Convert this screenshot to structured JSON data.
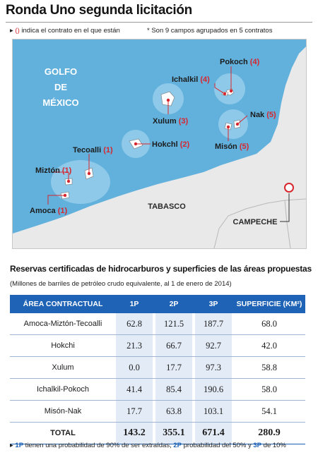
{
  "title": "Ronda Uno segunda licitación",
  "notes": {
    "n1_pre": "(",
    "n1_red": ")",
    "n1_text": "indica el contrato en el que están",
    "n2": "* Son 9 campos agrupados en 5 contratos"
  },
  "map": {
    "gulf_line1": "GOLFO",
    "gulf_line2": "DE",
    "gulf_line3": "MÉXICO",
    "state_tabasco": "TABASCO",
    "state_campeche": "CAMPECHE",
    "fields": [
      {
        "name": "Pokoch",
        "contract": "(4)"
      },
      {
        "name": "Ichalkil",
        "contract": "(4)"
      },
      {
        "name": "Xulum",
        "contract": "(3)"
      },
      {
        "name": "Nak",
        "contract": "(5)"
      },
      {
        "name": "Misón",
        "contract": "(5)"
      },
      {
        "name": "Hokchl",
        "contract": "(2)"
      },
      {
        "name": "Tecoalli",
        "contract": "(1)"
      },
      {
        "name": "Miztón",
        "contract": "(1)"
      },
      {
        "name": "Amoca",
        "contract": "(1)"
      }
    ],
    "colors": {
      "sea": "#62b1dd",
      "land": "#e9e9e9",
      "marker": "#d7262e",
      "circle": "#9ad0ec"
    }
  },
  "table": {
    "title": "Reservas certificadas de hidrocarburos y superficies de las áreas propuestas",
    "subtitle": "(Millones de barriles de petróleo crudo equivalente, al 1 de enero de 2014)",
    "headers": [
      "ÁREA CONTRACTUAL",
      "1P",
      "2P",
      "3P",
      "SUPERFICIE (KM²)"
    ],
    "rows": [
      [
        "Amoca-Miztón-Tecoalli",
        "62.8",
        "121.5",
        "187.7",
        "68.0"
      ],
      [
        "Hokchi",
        "21.3",
        "66.7",
        "92.7",
        "42.0"
      ],
      [
        "Xulum",
        "0.0",
        "17.7",
        "97.3",
        "58.8"
      ],
      [
        "Ichalkil-Pokoch",
        "41.4",
        "85.4",
        "190.6",
        "58.0"
      ],
      [
        "Misón-Nak",
        "17.7",
        "63.8",
        "103.1",
        "54.1"
      ]
    ],
    "total": [
      "TOTAL",
      "143.2",
      "355.1",
      "671.4",
      "280.9"
    ],
    "header_color": "#1f63b6"
  },
  "footnote": {
    "p1": "1P",
    "t1": " tienen una probabilidad de 90% de ser extraídas, ",
    "p2": "2P",
    "t2": " probabilidad del 50% y ",
    "p3": "3P",
    "t3": " de 10%"
  }
}
